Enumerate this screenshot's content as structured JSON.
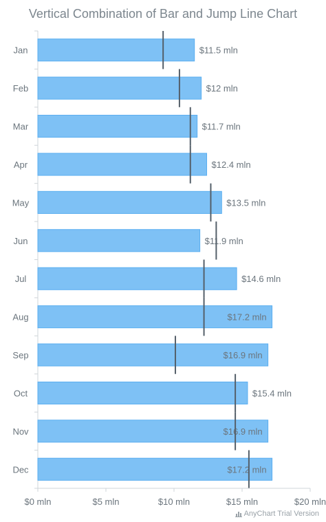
{
  "title": "Vertical Combination of Bar and Jump Line Chart",
  "credits": "AnyChart Trial Version",
  "chart_data": {
    "type": "bar",
    "orientation": "horizontal",
    "categories": [
      "Jan",
      "Feb",
      "Mar",
      "Apr",
      "May",
      "Jun",
      "Jul",
      "Aug",
      "Sep",
      "Oct",
      "Nov",
      "Dec"
    ],
    "series": [
      {
        "kind": "bar",
        "values": [
          11.5,
          12,
          11.7,
          12.4,
          13.5,
          11.9,
          14.6,
          17.2,
          16.9,
          15.4,
          16.9,
          17.2
        ],
        "labels": [
          "$11.5 mln",
          "$12 mln",
          "$11.7 mln",
          "$12.4 mln",
          "$13.5 mln",
          "$11.9 mln",
          "$14.6 mln",
          "$17.2 mln",
          "$16.9 mln",
          "$15.4 mln",
          "$16.9 mln",
          "$17.2 mln"
        ],
        "color": "#7ec1f5",
        "stroke": "#5aaef0"
      },
      {
        "kind": "jump-line",
        "values": [
          9.2,
          10.4,
          11.2,
          11.2,
          12.7,
          13.1,
          12.2,
          12.2,
          10.1,
          14.5,
          14.5,
          15.5
        ],
        "color": "#545f69"
      }
    ],
    "xaxis": {
      "ticks": [
        0,
        5,
        10,
        15,
        20
      ],
      "tick_labels": [
        "$0 mln",
        "$5 mln",
        "$10 mln",
        "$15 mln",
        "$20 mln"
      ],
      "range": [
        0,
        20
      ]
    },
    "grid": false,
    "legend": "none"
  }
}
